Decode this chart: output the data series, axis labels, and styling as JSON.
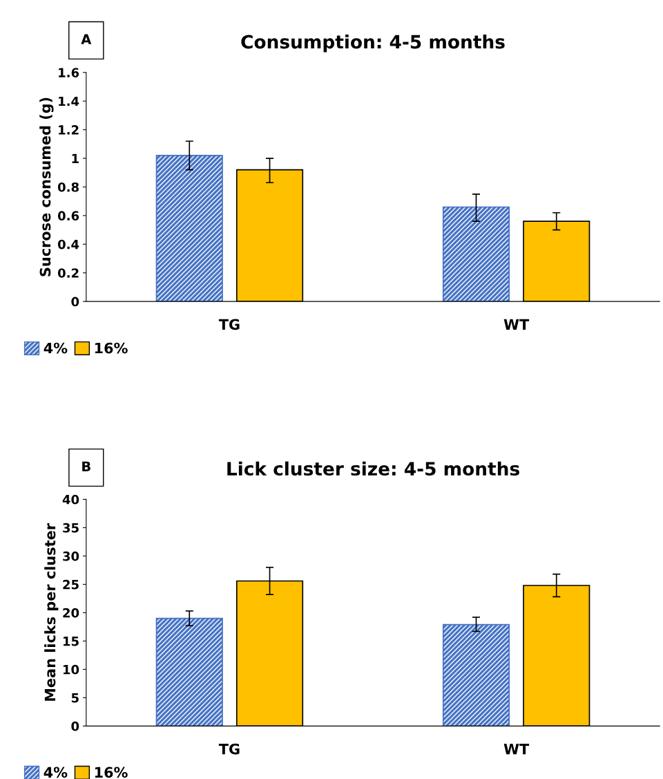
{
  "chart_data": [
    {
      "type": "bar",
      "title": "Consumption: 4-5 months",
      "ylabel": "Sucrose consumed (g)",
      "categories": [
        "TG",
        "WT"
      ],
      "series": [
        {
          "name": "4%",
          "color": "#4472c4",
          "values": [
            1.02,
            0.66
          ],
          "errors": [
            [
              0.92,
              1.12
            ],
            [
              0.56,
              0.75
            ]
          ]
        },
        {
          "name": "16%",
          "color": "#ffc000",
          "values": [
            0.92,
            0.56
          ],
          "errors": [
            [
              0.83,
              1.0
            ],
            [
              0.5,
              0.62
            ]
          ]
        }
      ],
      "ylim": [
        0,
        1.6
      ],
      "yticks": [
        0,
        0.2,
        0.4,
        0.6,
        0.8,
        1,
        1.2,
        1.4,
        1.6
      ],
      "grid": false,
      "legend": "bottom left",
      "annotations": [
        "A"
      ]
    },
    {
      "type": "bar",
      "title": "Lick cluster size: 4-5 months",
      "ylabel": "Mean licks per cluster",
      "categories": [
        "TG",
        "WT"
      ],
      "series": [
        {
          "name": "4%",
          "color": "#4472c4",
          "values": [
            19,
            17.9
          ],
          "errors": [
            [
              17.7,
              20.3
            ],
            [
              16.7,
              19.2
            ]
          ]
        },
        {
          "name": "16%",
          "color": "#ffc000",
          "values": [
            25.6,
            24.8
          ],
          "errors": [
            [
              23.2,
              28.0
            ],
            [
              22.8,
              26.8
            ]
          ]
        }
      ],
      "ylim": [
        0,
        40
      ],
      "yticks": [
        0,
        5,
        10,
        15,
        20,
        25,
        30,
        35,
        40
      ],
      "grid": false,
      "legend": "bottom left",
      "annotations": [
        "B"
      ]
    }
  ]
}
